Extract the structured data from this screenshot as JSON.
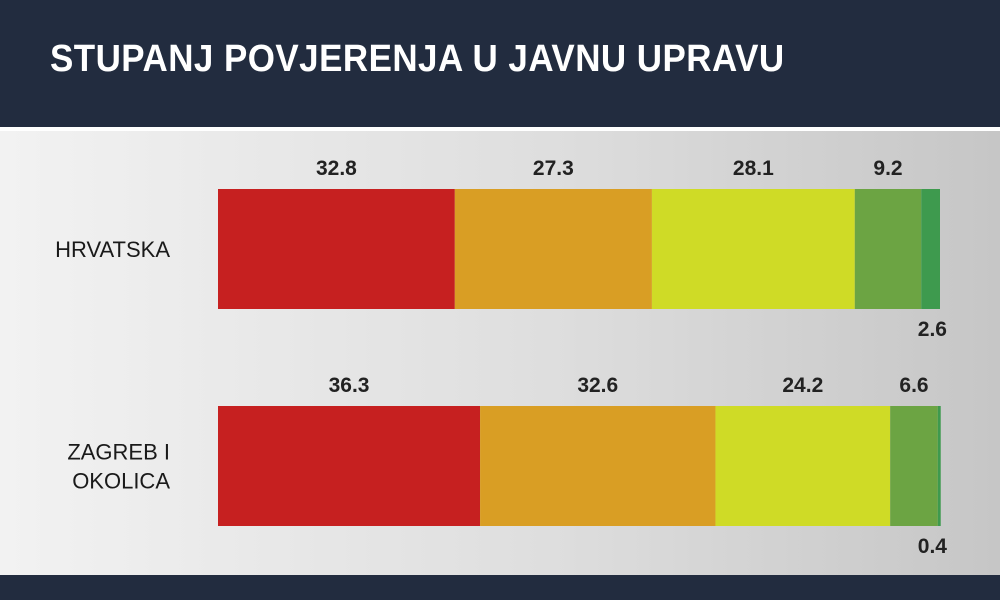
{
  "header": {
    "title": "STUPANJ POVJERENJA U JAVNU UPRAVU"
  },
  "colors": {
    "background_header": "#222c3f",
    "segments": [
      "#c62020",
      "#d99e24",
      "#cfdb26",
      "#6ca443",
      "#3e9a4e"
    ]
  },
  "chart_data": {
    "type": "bar",
    "orientation": "horizontal",
    "stacked": true,
    "title": "STUPANJ POVJERENJA U JAVNU UPRAVU",
    "categories": [
      "HRVATSKA",
      "ZAGREB I OKOLICA"
    ],
    "category_lines": [
      [
        "HRVATSKA"
      ],
      [
        "ZAGREB I",
        "OKOLICA"
      ]
    ],
    "series": [
      {
        "values": [
          32.8,
          36.3
        ],
        "color": "#c62020"
      },
      {
        "values": [
          27.3,
          32.6
        ],
        "color": "#d99e24"
      },
      {
        "values": [
          28.1,
          24.2
        ],
        "color": "#cfdb26"
      },
      {
        "values": [
          9.2,
          6.6
        ],
        "color": "#6ca443"
      },
      {
        "values": [
          2.6,
          0.4
        ],
        "color": "#3e9a4e"
      }
    ],
    "value_labels": [
      [
        "32.8",
        "27.3",
        "28.1",
        "9.2",
        "2.6"
      ],
      [
        "36.3",
        "32.6",
        "24.2",
        "6.6",
        "0.4"
      ]
    ],
    "xlim": [
      0,
      100
    ],
    "grid": false,
    "legend": false
  }
}
